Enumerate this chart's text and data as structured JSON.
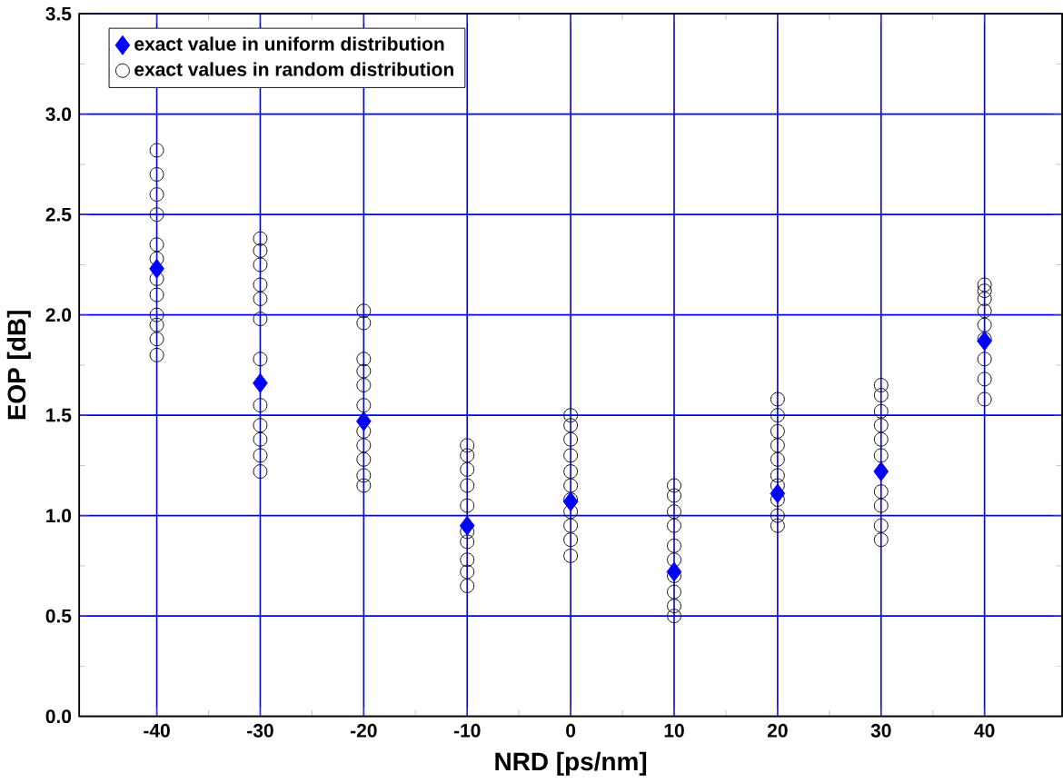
{
  "chart_data": {
    "type": "scatter",
    "xlabel": "NRD [ps/nm]",
    "ylabel": "EOP [dB]",
    "xlim": [
      -47.5,
      47.5
    ],
    "ylim": [
      0,
      3.5
    ],
    "xticks": [
      -40,
      -30,
      -20,
      -10,
      0,
      10,
      20,
      30,
      40
    ],
    "yticks": [
      {
        "value": 0,
        "label": "0.0"
      },
      {
        "value": 0.5,
        "label": "0.5"
      },
      {
        "value": 1,
        "label": "1.0"
      },
      {
        "value": 1.5,
        "label": "1.5"
      },
      {
        "value": 2,
        "label": "2.0"
      },
      {
        "value": 2.5,
        "label": "2.5"
      },
      {
        "value": 3,
        "label": "3.0"
      },
      {
        "value": 3.5,
        "label": "3.5"
      }
    ],
    "grid": true,
    "legend": "top left",
    "series": [
      {
        "name": "exact value in uniform distribution",
        "color": "#0000ff",
        "marker": "diamond",
        "x": [
          -40,
          -30,
          -20,
          -10,
          0,
          10,
          20,
          30,
          40
        ],
        "values": [
          2.23,
          1.66,
          1.47,
          0.95,
          1.07,
          0.72,
          1.11,
          1.22,
          1.87
        ]
      },
      {
        "name": "exact values in random distribution",
        "color": "#000000",
        "marker": "circle",
        "x": [
          -40,
          -40,
          -40,
          -40,
          -40,
          -40,
          -40,
          -40,
          -40,
          -40,
          -40,
          -40,
          -30,
          -30,
          -30,
          -30,
          -30,
          -30,
          -30,
          -30,
          -30,
          -30,
          -30,
          -30,
          -20,
          -20,
          -20,
          -20,
          -20,
          -20,
          -20,
          -20,
          -20,
          -20,
          -20,
          -10,
          -10,
          -10,
          -10,
          -10,
          -10,
          -10,
          -10,
          -10,
          -10,
          0,
          0,
          0,
          0,
          0,
          0,
          0,
          0,
          0,
          0,
          0,
          10,
          10,
          10,
          10,
          10,
          10,
          10,
          10,
          10,
          10,
          20,
          20,
          20,
          20,
          20,
          20,
          20,
          20,
          20,
          20,
          30,
          30,
          30,
          30,
          30,
          30,
          30,
          30,
          30,
          30,
          40,
          40,
          40,
          40,
          40,
          40,
          40,
          40,
          40
        ],
        "values": [
          2.82,
          2.7,
          2.6,
          2.5,
          2.35,
          2.28,
          2.18,
          2.1,
          2.0,
          1.95,
          1.88,
          1.8,
          2.38,
          2.32,
          2.25,
          2.15,
          2.08,
          1.98,
          1.78,
          1.55,
          1.45,
          1.38,
          1.3,
          1.22,
          2.02,
          1.96,
          1.78,
          1.72,
          1.65,
          1.55,
          1.42,
          1.35,
          1.28,
          1.2,
          1.15,
          1.35,
          1.3,
          1.23,
          1.15,
          1.05,
          0.92,
          0.87,
          0.78,
          0.72,
          0.65,
          1.5,
          1.45,
          1.38,
          1.3,
          1.22,
          1.15,
          1.08,
          1.02,
          0.95,
          0.88,
          0.8,
          1.15,
          1.1,
          1.02,
          0.95,
          0.85,
          0.78,
          0.7,
          0.62,
          0.55,
          0.5,
          1.58,
          1.5,
          1.42,
          1.35,
          1.28,
          1.2,
          1.15,
          1.08,
          1.0,
          0.95,
          1.65,
          1.6,
          1.52,
          1.45,
          1.38,
          1.3,
          1.12,
          1.05,
          0.95,
          0.88,
          2.15,
          2.12,
          2.08,
          2.02,
          1.95,
          1.88,
          1.78,
          1.68,
          1.58
        ]
      }
    ]
  }
}
